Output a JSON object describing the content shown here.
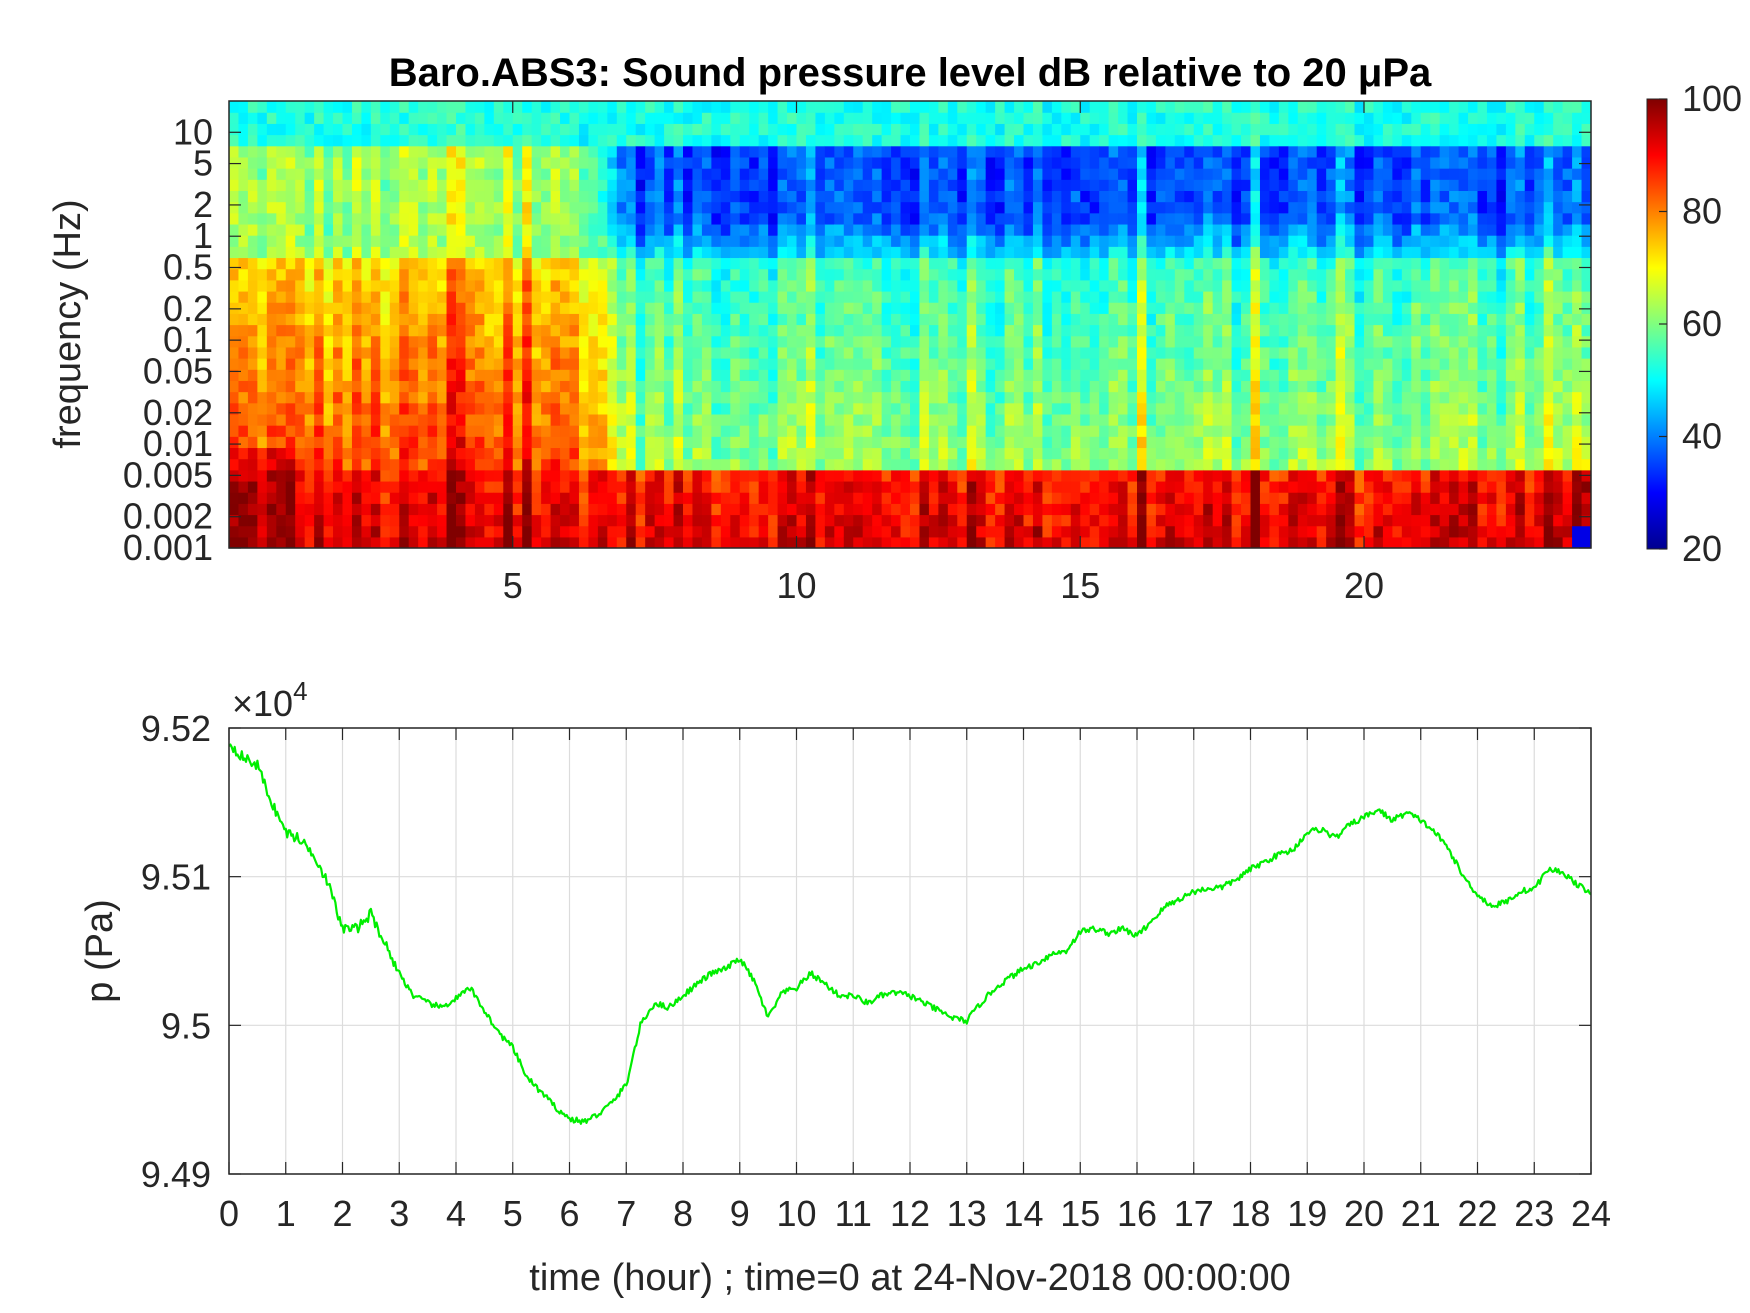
{
  "chart_data": [
    {
      "type": "heatmap",
      "title": "Baro.ABS3: Sound pressure level dB relative to 20 μPa",
      "ylabel": "frequency (Hz)",
      "xlabel": "",
      "x_ticks": [
        "5",
        "10",
        "15",
        "20"
      ],
      "x_tick_values": [
        5,
        10,
        15,
        20
      ],
      "xlim": [
        0,
        24
      ],
      "y_scale": "log",
      "y_ticks": [
        "10",
        "5",
        "2",
        "1",
        "0.5",
        "0.2",
        "0.1",
        "0.05",
        "0.02",
        "0.01",
        "0.005",
        "0.002",
        "0.001"
      ],
      "y_tick_values": [
        10,
        5,
        2,
        1,
        0.5,
        0.2,
        0.1,
        0.05,
        0.02,
        0.01,
        0.005,
        0.002,
        0.001
      ],
      "ylim": [
        0.001,
        20
      ],
      "colorbar": {
        "colormap": "jet",
        "range": [
          20,
          100
        ],
        "ticks": [
          "100",
          "80",
          "60",
          "40",
          "20"
        ],
        "tick_values": [
          100,
          80,
          60,
          40,
          20
        ]
      },
      "regions": [
        {
          "time_range": [
            0,
            6
          ],
          "description": "high level (75-95 dB) below 1 Hz, ~60 dB above"
        },
        {
          "time_range": [
            6,
            24
          ],
          "description": "30-45 dB between 1 and 5 Hz, 55-70 dB 0.01-0.5 Hz, 85-95 dB below 0.005 Hz"
        }
      ]
    },
    {
      "type": "line",
      "title": "",
      "xlabel": "time (hour) ; time=0 at 24-Nov-2018 00:00:00",
      "ylabel": "p (Pa)",
      "y_multiplier": "×10",
      "y_multiplier_exp": "4",
      "xlim": [
        0,
        24
      ],
      "ylim": [
        94900,
        95200
      ],
      "x_ticks": [
        "0",
        "1",
        "2",
        "3",
        "4",
        "5",
        "6",
        "7",
        "8",
        "9",
        "10",
        "11",
        "12",
        "13",
        "14",
        "15",
        "16",
        "17",
        "18",
        "19",
        "20",
        "21",
        "22",
        "23",
        "24"
      ],
      "y_ticks": [
        "9.52",
        "9.51",
        "9.5",
        "9.49"
      ],
      "y_tick_values": [
        95200,
        95100,
        95000,
        94900
      ],
      "grid": true,
      "series": [
        {
          "color": "#00ee00",
          "x": [
            0,
            0.25,
            0.5,
            0.75,
            1.0,
            1.25,
            1.5,
            1.75,
            2.0,
            2.25,
            2.5,
            2.75,
            3.0,
            3.25,
            3.5,
            3.75,
            4.0,
            4.25,
            4.5,
            4.75,
            5.0,
            5.25,
            5.5,
            5.75,
            6.0,
            6.25,
            6.5,
            6.75,
            7.0,
            7.25,
            7.5,
            7.75,
            8.0,
            8.25,
            8.5,
            8.75,
            9.0,
            9.25,
            9.5,
            9.75,
            10.0,
            10.25,
            10.5,
            10.75,
            11.0,
            11.25,
            11.5,
            11.75,
            12.0,
            12.25,
            12.5,
            12.75,
            13.0,
            13.25,
            13.5,
            13.75,
            14.0,
            14.25,
            14.5,
            14.75,
            15.0,
            15.25,
            15.5,
            15.75,
            16.0,
            16.25,
            16.5,
            16.75,
            17.0,
            17.25,
            17.5,
            17.75,
            18.0,
            18.25,
            18.5,
            18.75,
            19.0,
            19.25,
            19.5,
            19.75,
            20.0,
            20.25,
            20.5,
            20.75,
            21.0,
            21.25,
            21.5,
            21.75,
            22.0,
            22.25,
            22.5,
            22.75,
            23.0,
            23.25,
            23.5,
            23.75,
            24.0
          ],
          "y": [
            95190,
            95180,
            95175,
            95150,
            95130,
            95125,
            95115,
            95095,
            95065,
            95065,
            95075,
            95055,
            95035,
            95020,
            95015,
            95012,
            95018,
            95025,
            95010,
            94995,
            94985,
            94965,
            94955,
            94945,
            94937,
            94935,
            94940,
            94948,
            94960,
            95000,
            95015,
            95012,
            95020,
            95028,
            95035,
            95038,
            95045,
            95030,
            95005,
            95022,
            95025,
            95035,
            95028,
            95020,
            95020,
            95015,
            95020,
            95022,
            95020,
            95015,
            95010,
            95005,
            95003,
            95015,
            95025,
            95032,
            95038,
            95042,
            95048,
            95050,
            95063,
            95065,
            95062,
            95065,
            95060,
            95070,
            95080,
            95085,
            95090,
            95092,
            95093,
            95098,
            95105,
            95110,
            95115,
            95118,
            95130,
            95132,
            95126,
            95135,
            95140,
            95145,
            95138,
            95143,
            95138,
            95130,
            95118,
            95100,
            95088,
            95080,
            95083,
            95090,
            95092,
            95105,
            95103,
            95095,
            95088
          ]
        }
      ]
    }
  ]
}
